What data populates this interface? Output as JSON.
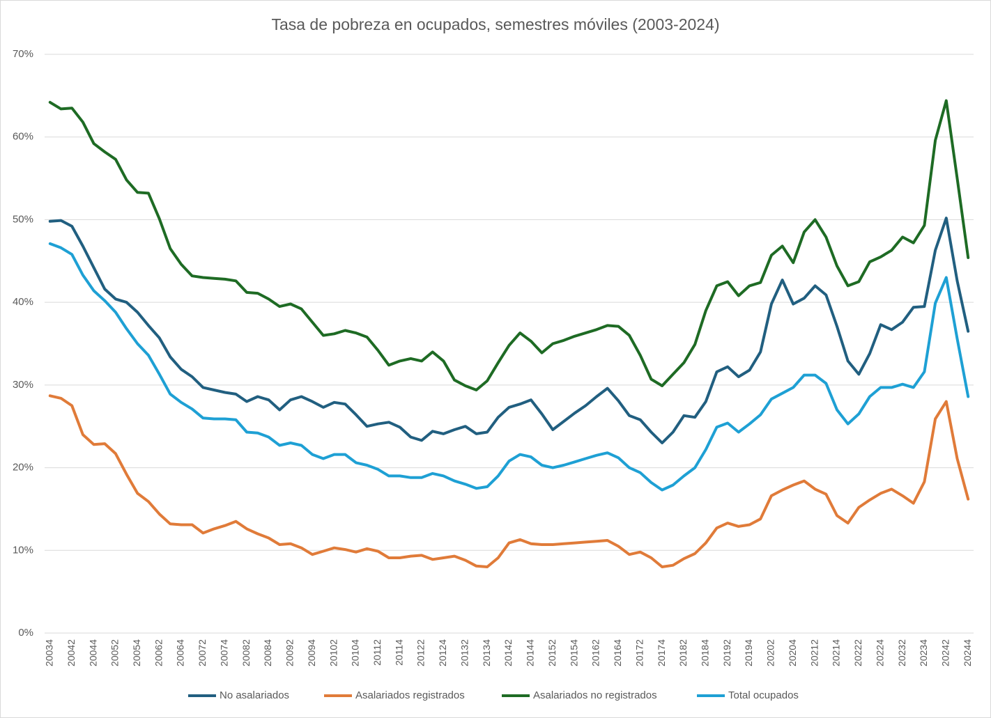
{
  "chart_data": {
    "type": "line",
    "title": "Tasa de pobreza en ocupados, semestres móviles (2003-2024)",
    "categories": [
      "20034",
      null,
      "20042",
      null,
      "20044",
      null,
      "20052",
      null,
      "20054",
      null,
      "20062",
      null,
      "20064",
      null,
      "20072",
      null,
      "20074",
      null,
      "20082",
      null,
      "20084",
      null,
      "20092",
      null,
      "20094",
      null,
      "20102",
      null,
      "20104",
      null,
      "20112",
      null,
      "20114",
      null,
      "20122",
      null,
      "20124",
      null,
      "20132",
      null,
      "20134",
      null,
      "20142",
      null,
      "20144",
      null,
      "20152",
      null,
      "20154",
      null,
      "20162",
      null,
      "20164",
      null,
      "20172",
      null,
      "20174",
      null,
      "20182",
      null,
      "20184",
      null,
      "20192",
      null,
      "20194",
      null,
      "20202",
      null,
      "20204",
      null,
      "20212",
      null,
      "20214",
      null,
      "20222",
      null,
      "20224",
      null,
      "20232",
      null,
      "20234",
      null,
      "20242",
      null,
      "20244"
    ],
    "series": [
      {
        "name": "No asalariados",
        "color": "#215f80",
        "values": [
          49.8,
          49.9,
          49.2,
          46.8,
          44.2,
          41.6,
          40.4,
          40.0,
          38.8,
          37.2,
          35.7,
          33.4,
          31.9,
          31.0,
          29.7,
          29.4,
          29.1,
          28.9,
          28.0,
          28.6,
          28.2,
          27.0,
          28.2,
          28.6,
          28.0,
          27.3,
          27.9,
          27.7,
          26.4,
          25.0,
          25.3,
          25.5,
          24.9,
          23.7,
          23.3,
          24.4,
          24.1,
          24.6,
          25.0,
          24.1,
          24.3,
          26.1,
          27.3,
          27.7,
          28.2,
          26.5,
          24.6,
          25.6,
          26.6,
          27.5,
          28.6,
          29.6,
          28.1,
          26.3,
          25.8,
          24.3,
          23.0,
          24.3,
          26.3,
          26.1,
          28.0,
          31.6,
          32.2,
          31.0,
          31.8,
          34.0,
          39.8,
          42.7,
          39.8,
          40.5,
          42.0,
          40.9,
          37.1,
          32.9,
          31.3,
          33.8,
          37.3,
          36.7,
          37.6,
          39.4,
          39.5,
          46.3,
          50.2,
          42.6,
          36.5
        ]
      },
      {
        "name": "Asalariados registrados",
        "color": "#e07b39",
        "values": [
          28.7,
          28.4,
          27.5,
          24.0,
          22.8,
          22.9,
          21.7,
          19.2,
          16.9,
          15.9,
          14.4,
          13.2,
          13.1,
          13.1,
          12.1,
          12.6,
          13.0,
          13.5,
          12.6,
          12.0,
          11.5,
          10.7,
          10.8,
          10.3,
          9.5,
          9.9,
          10.3,
          10.1,
          9.8,
          10.2,
          9.9,
          9.1,
          9.1,
          9.3,
          9.4,
          8.9,
          9.1,
          9.3,
          8.8,
          8.1,
          8.0,
          9.1,
          10.9,
          11.3,
          10.8,
          10.7,
          10.7,
          10.8,
          10.9,
          11.0,
          11.1,
          11.2,
          10.5,
          9.5,
          9.8,
          9.1,
          8.0,
          8.2,
          9.0,
          9.6,
          10.9,
          12.7,
          13.3,
          12.9,
          13.1,
          13.8,
          16.6,
          17.3,
          17.9,
          18.4,
          17.4,
          16.8,
          14.2,
          13.3,
          15.2,
          16.1,
          16.9,
          17.4,
          16.6,
          15.7,
          18.3,
          25.9,
          28.0,
          21.1,
          16.2
        ]
      },
      {
        "name": "Asalariados no registrados",
        "color": "#1e6b24",
        "values": [
          64.2,
          63.4,
          63.5,
          61.8,
          59.2,
          58.2,
          57.3,
          54.8,
          53.3,
          53.2,
          50.1,
          46.5,
          44.6,
          43.2,
          43.0,
          42.9,
          42.8,
          42.6,
          41.2,
          41.1,
          40.4,
          39.5,
          39.8,
          39.2,
          37.6,
          36.0,
          36.2,
          36.6,
          36.3,
          35.8,
          34.2,
          32.4,
          32.9,
          33.2,
          32.9,
          34.0,
          32.9,
          30.6,
          29.9,
          29.4,
          30.5,
          32.7,
          34.8,
          36.3,
          35.3,
          33.9,
          35.0,
          35.4,
          35.9,
          36.3,
          36.7,
          37.2,
          37.1,
          36.0,
          33.6,
          30.7,
          29.9,
          31.3,
          32.7,
          34.9,
          39.0,
          42.0,
          42.5,
          40.8,
          42.0,
          42.4,
          45.7,
          46.8,
          44.8,
          48.5,
          50.0,
          47.9,
          44.4,
          42.0,
          42.5,
          44.9,
          45.5,
          46.3,
          47.9,
          47.2,
          49.3,
          59.6,
          64.4,
          55.0,
          45.4
        ]
      },
      {
        "name": "Total ocupados",
        "color": "#1ea0d4",
        "values": [
          47.1,
          46.6,
          45.8,
          43.3,
          41.4,
          40.2,
          38.8,
          36.8,
          35.0,
          33.6,
          31.3,
          28.9,
          27.9,
          27.1,
          26.0,
          25.9,
          25.9,
          25.8,
          24.3,
          24.2,
          23.7,
          22.7,
          23.0,
          22.7,
          21.6,
          21.1,
          21.6,
          21.6,
          20.6,
          20.3,
          19.8,
          19.0,
          19.0,
          18.8,
          18.8,
          19.3,
          19.0,
          18.4,
          18.0,
          17.5,
          17.7,
          19.0,
          20.8,
          21.6,
          21.3,
          20.3,
          20.0,
          20.3,
          20.7,
          21.1,
          21.5,
          21.8,
          21.2,
          20.0,
          19.4,
          18.2,
          17.3,
          17.9,
          19.0,
          20.0,
          22.2,
          24.9,
          25.4,
          24.3,
          25.3,
          26.4,
          28.3,
          29.0,
          29.7,
          31.2,
          31.2,
          30.2,
          27.0,
          25.3,
          26.5,
          28.6,
          29.7,
          29.7,
          30.1,
          29.7,
          31.6,
          39.9,
          43.0,
          35.6,
          28.6
        ]
      }
    ],
    "ylim": [
      0,
      70
    ],
    "yticks": [
      {
        "value": 0,
        "label": "0%"
      },
      {
        "value": 10,
        "label": "10%"
      },
      {
        "value": 20,
        "label": "20%"
      },
      {
        "value": 30,
        "label": "30%"
      },
      {
        "value": 40,
        "label": "40%"
      },
      {
        "value": 50,
        "label": "50%"
      },
      {
        "value": 60,
        "label": "60%"
      },
      {
        "value": 70,
        "label": "70%"
      }
    ],
    "grid": true,
    "legend": "bottom"
  }
}
